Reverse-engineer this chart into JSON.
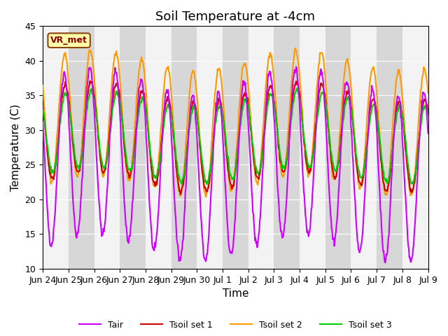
{
  "title": "Soil Temperature at -4cm",
  "xlabel": "Time",
  "ylabel": "Temperature (C)",
  "ylim": [
    10,
    45
  ],
  "annotation": "VR_met",
  "colors": {
    "Tair": "#cc00ff",
    "Tsoil1": "#cc0000",
    "Tsoil2": "#ff9900",
    "Tsoil3": "#00cc00"
  },
  "legend_labels": [
    "Tair",
    "Tsoil set 1",
    "Tsoil set 2",
    "Tsoil set 3"
  ],
  "xtick_labels": [
    "Jun 24",
    "Jun 25",
    "Jun 26",
    "Jun 27",
    "Jun 28",
    "Jun 29",
    "Jun 30",
    "Jul 1",
    "Jul 2",
    "Jul 3",
    "Jul 4",
    "Jul 5",
    "Jul 6",
    "Jul 7",
    "Jul 8",
    "Jul 9"
  ],
  "background_color": "#ffffff",
  "plot_bg_color": "#e8e8e8",
  "title_fontsize": 13,
  "axis_label_fontsize": 11,
  "tick_fontsize": 9,
  "line_width": 1.5,
  "num_days": 15,
  "points_per_day": 48
}
